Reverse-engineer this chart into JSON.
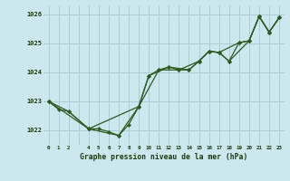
{
  "title": "Graphe pression niveau de la mer (hPa)",
  "bg_color": "#cce8ee",
  "grid_color": "#aacdd6",
  "line_color": "#2d5a1e",
  "marker_color": "#2d5a1e",
  "xlim": [
    -0.5,
    23.5
  ],
  "ylim": [
    1021.5,
    1026.3
  ],
  "yticks": [
    1022,
    1023,
    1024,
    1025,
    1026
  ],
  "xtick_labels": [
    "0",
    "1",
    "2",
    "",
    "4",
    "5",
    "6",
    "7",
    "8",
    "9",
    "10",
    "11",
    "12",
    "13",
    "14",
    "15",
    "16",
    "17",
    "18",
    "19",
    "20",
    "21",
    "22",
    "23"
  ],
  "series1": [
    [
      0,
      1023.0
    ],
    [
      1,
      1022.72
    ],
    [
      2,
      1022.65
    ],
    [
      4,
      1022.05
    ],
    [
      5,
      1022.05
    ],
    [
      6,
      1021.95
    ],
    [
      7,
      1021.82
    ],
    [
      8,
      1022.2
    ],
    [
      9,
      1022.82
    ],
    [
      10,
      1023.88
    ],
    [
      11,
      1024.08
    ],
    [
      12,
      1024.18
    ],
    [
      13,
      1024.08
    ],
    [
      14,
      1024.08
    ],
    [
      15,
      1024.38
    ],
    [
      16,
      1024.72
    ],
    [
      17,
      1024.68
    ],
    [
      18,
      1024.38
    ],
    [
      19,
      1025.02
    ],
    [
      20,
      1025.08
    ],
    [
      21,
      1025.92
    ],
    [
      22,
      1025.38
    ],
    [
      23,
      1025.88
    ]
  ],
  "series2": [
    [
      0,
      1023.0
    ],
    [
      2,
      1022.65
    ],
    [
      4,
      1022.05
    ],
    [
      7,
      1021.82
    ],
    [
      9,
      1022.82
    ],
    [
      10,
      1023.88
    ],
    [
      12,
      1024.18
    ],
    [
      14,
      1024.08
    ],
    [
      15,
      1024.38
    ],
    [
      16,
      1024.72
    ],
    [
      17,
      1024.68
    ],
    [
      19,
      1025.02
    ],
    [
      20,
      1025.08
    ],
    [
      21,
      1025.92
    ],
    [
      22,
      1025.38
    ],
    [
      23,
      1025.88
    ]
  ],
  "series3": [
    [
      0,
      1023.0
    ],
    [
      4,
      1022.05
    ],
    [
      9,
      1022.82
    ],
    [
      11,
      1024.08
    ],
    [
      13,
      1024.08
    ],
    [
      15,
      1024.38
    ],
    [
      16,
      1024.72
    ],
    [
      17,
      1024.68
    ],
    [
      18,
      1024.38
    ],
    [
      20,
      1025.08
    ],
    [
      21,
      1025.92
    ],
    [
      22,
      1025.38
    ],
    [
      23,
      1025.88
    ]
  ]
}
